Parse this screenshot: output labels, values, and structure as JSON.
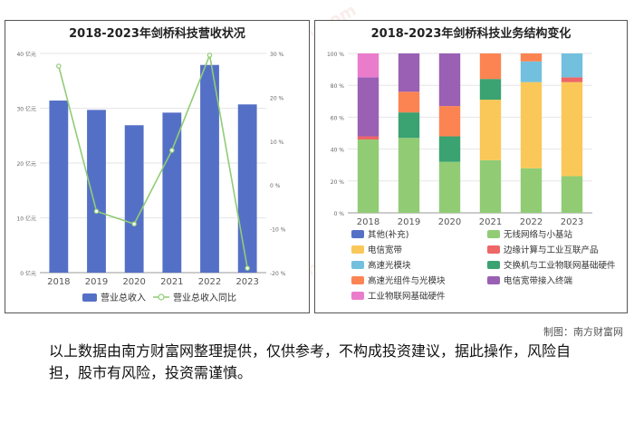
{
  "credit": "制图：南方财富网",
  "disclaimer": "以上数据由南方财富网整理提供，仅供参考，不构成投资建议，据此操作，风险自担，股市有风险，投资需谨慎。",
  "watermark": {
    "cn": "南方财富网",
    "en": "southmoney.com"
  },
  "colors": {
    "bar": "#5470c6",
    "line": "#91cc75",
    "grid": "#e6e6e6"
  },
  "chart_data": [
    {
      "type": "bar",
      "title": "2018-2023年剑桥科技营收状况",
      "categories": [
        "2018",
        "2019",
        "2020",
        "2021",
        "2022",
        "2023"
      ],
      "y_ticks": [
        "0 亿元",
        "10 亿元",
        "20 亿元",
        "30 亿元",
        "40 亿元"
      ],
      "y2_ticks": [
        "-20 %",
        "-10 %",
        "0 %",
        "10 %",
        "20 %",
        "30 %"
      ],
      "ylim": [
        0,
        40
      ],
      "y2lim": [
        -20,
        30
      ],
      "series": [
        {
          "name": "营业总收入",
          "type": "bar",
          "axis": "left",
          "values": [
            31.4,
            29.7,
            26.9,
            29.2,
            37.9,
            30.7
          ]
        },
        {
          "name": "营业总收入同比",
          "type": "line",
          "axis": "right",
          "values": [
            27.1,
            -6.0,
            -8.9,
            7.9,
            29.6,
            -19.0
          ]
        }
      ],
      "legend_position": "bottom"
    },
    {
      "type": "bar",
      "stacked": true,
      "title": "2018-2023年剑桥科技业务结构变化",
      "categories": [
        "2018",
        "2019",
        "2020",
        "2021",
        "2022",
        "2023"
      ],
      "y_ticks": [
        "0 %",
        "20 %",
        "40 %",
        "60 %",
        "80 %",
        "100 %"
      ],
      "ylim": [
        0,
        100
      ],
      "series": [
        {
          "name": "其他(补充)",
          "color": "#5470c6",
          "values": [
            0,
            0,
            0,
            0,
            0,
            0
          ]
        },
        {
          "name": "无线网络与小基站",
          "color": "#91cc75",
          "values": [
            46,
            47,
            32,
            33,
            28,
            23
          ]
        },
        {
          "name": "电信宽带",
          "color": "#fac858",
          "values": [
            0,
            0,
            0,
            38,
            54,
            59
          ]
        },
        {
          "name": "边缘计算与工业互联产品",
          "color": "#ee6666",
          "values": [
            2,
            0,
            0,
            0,
            0,
            3
          ]
        },
        {
          "name": "高速光模块",
          "color": "#73c0de",
          "values": [
            0,
            0,
            0,
            0,
            13,
            15
          ]
        },
        {
          "name": "交换机与工业物联网基础硬件",
          "color": "#3ba272",
          "values": [
            0,
            16,
            16,
            13,
            0,
            0
          ]
        },
        {
          "name": "高速光组件与光模块",
          "color": "#fc8452",
          "values": [
            0,
            13,
            19,
            16,
            5,
            0
          ]
        },
        {
          "name": "电信宽带接入终端",
          "color": "#9a60b4",
          "values": [
            37,
            24,
            33,
            0,
            0,
            0
          ]
        },
        {
          "name": "工业物联网基础硬件",
          "color": "#ea7ccc",
          "values": [
            15,
            0,
            0,
            0,
            0,
            0
          ]
        }
      ],
      "legend_position": "bottom"
    }
  ]
}
